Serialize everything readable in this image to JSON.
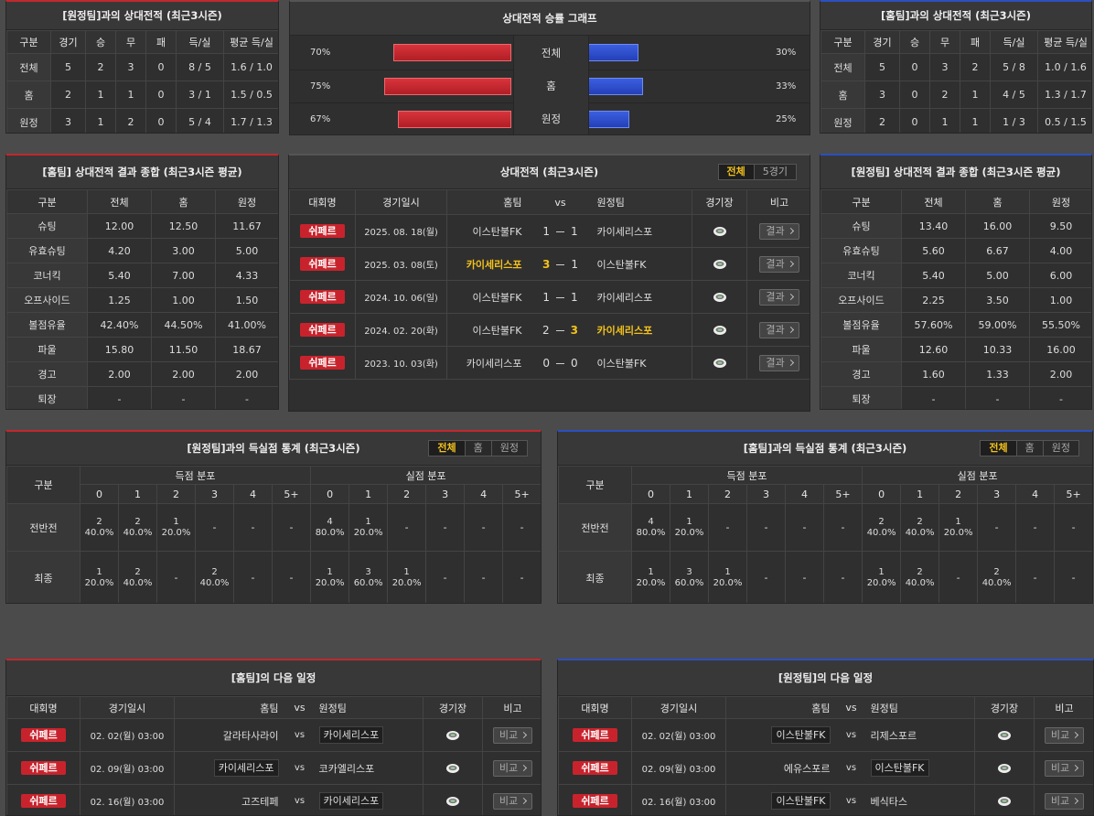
{
  "away_h2h": {
    "title": "[원정팀]과의 상대전적 (최근3시즌)",
    "columns": [
      "구분",
      "경기",
      "승",
      "무",
      "패",
      "득/실",
      "평균 득/실"
    ],
    "rows": [
      [
        "전체",
        "5",
        "2",
        "3",
        "0",
        "8 / 5",
        "1.6 / 1.0"
      ],
      [
        "홈",
        "2",
        "1",
        "1",
        "0",
        "3 / 1",
        "1.5 / 0.5"
      ],
      [
        "원정",
        "3",
        "1",
        "2",
        "0",
        "5 / 4",
        "1.7 / 1.3"
      ]
    ]
  },
  "winrate": {
    "title": "상대전적 승률 그래프",
    "rows": [
      {
        "label": "전체",
        "home": 70,
        "home_label": "70%",
        "away": 30,
        "away_label": "30%"
      },
      {
        "label": "홈",
        "home": 75,
        "home_label": "75%",
        "away": 33,
        "away_label": "33%"
      },
      {
        "label": "원정",
        "home": 67,
        "home_label": "67%",
        "away": 25,
        "away_label": "25%"
      }
    ]
  },
  "home_h2h": {
    "title": "[홈팀]과의 상대전적 (최근3시즌)",
    "columns": [
      "구분",
      "경기",
      "승",
      "무",
      "패",
      "득/실",
      "평균 득/실"
    ],
    "rows": [
      [
        "전체",
        "5",
        "0",
        "3",
        "2",
        "5 / 8",
        "1.0 / 1.6"
      ],
      [
        "홈",
        "3",
        "0",
        "2",
        "1",
        "4 / 5",
        "1.3 / 1.7"
      ],
      [
        "원정",
        "2",
        "0",
        "1",
        "1",
        "1 / 3",
        "0.5 / 1.5"
      ]
    ]
  },
  "home_summary": {
    "title": "[홈팀] 상대전적 결과 종합 (최근3시즌 평균)",
    "columns": [
      "구분",
      "전체",
      "홈",
      "원정"
    ],
    "rows": [
      [
        "슈팅",
        "12.00",
        "12.50",
        "11.67"
      ],
      [
        "유효슈팅",
        "4.20",
        "3.00",
        "5.00"
      ],
      [
        "코너킥",
        "5.40",
        "7.00",
        "4.33"
      ],
      [
        "오프사이드",
        "1.25",
        "1.00",
        "1.50"
      ],
      [
        "볼점유율",
        "42.40%",
        "44.50%",
        "41.00%"
      ],
      [
        "파울",
        "15.80",
        "11.50",
        "18.67"
      ],
      [
        "경고",
        "2.00",
        "2.00",
        "2.00"
      ],
      [
        "퇴장",
        "-",
        "-",
        "-"
      ]
    ]
  },
  "h2h_matches": {
    "title": "상대전적 (최근3시즌)",
    "tabs": [
      "전체",
      "5경기"
    ],
    "columns": [
      "대회명",
      "경기일시",
      "홈팀",
      "vs",
      "원정팀",
      "경기장",
      "비고"
    ],
    "rows": [
      {
        "league": "쉬페르",
        "date": "2025. 08. 18(월)",
        "home": "이스탄불FK",
        "score_home": 1,
        "score_away": 1,
        "away": "카이세리스포",
        "button": "결과"
      },
      {
        "league": "쉬페르",
        "date": "2025. 03. 08(토)",
        "home": "카이세리스포",
        "score_home": 3,
        "score_away": 1,
        "away": "이스탄불FK",
        "button": "결과"
      },
      {
        "league": "쉬페르",
        "date": "2024. 10. 06(일)",
        "home": "이스탄불FK",
        "score_home": 1,
        "score_away": 1,
        "away": "카이세리스포",
        "button": "결과"
      },
      {
        "league": "쉬페르",
        "date": "2024. 02. 20(화)",
        "home": "이스탄불FK",
        "score_home": 2,
        "score_away": 3,
        "away": "카이세리스포",
        "button": "결과"
      },
      {
        "league": "쉬페르",
        "date": "2023. 10. 03(화)",
        "home": "카이세리스포",
        "score_home": 0,
        "score_away": 0,
        "away": "이스탄불FK",
        "button": "결과"
      }
    ]
  },
  "away_summary": {
    "title": "[원정팀] 상대전적 결과 종합 (최근3시즌 평균)",
    "columns": [
      "구분",
      "전체",
      "홈",
      "원정"
    ],
    "rows": [
      [
        "슈팅",
        "13.40",
        "16.00",
        "9.50"
      ],
      [
        "유효슈팅",
        "5.60",
        "6.67",
        "4.00"
      ],
      [
        "코너킥",
        "5.40",
        "5.00",
        "6.00"
      ],
      [
        "오프사이드",
        "2.25",
        "3.50",
        "1.00"
      ],
      [
        "볼점유율",
        "57.60%",
        "59.00%",
        "55.50%"
      ],
      [
        "파울",
        "12.60",
        "10.33",
        "16.00"
      ],
      [
        "경고",
        "1.60",
        "1.33",
        "2.00"
      ],
      [
        "퇴장",
        "-",
        "-",
        "-"
      ]
    ]
  },
  "goals_away": {
    "title": "[원정팀]과의 득실점 통계 (최근3시즌)",
    "tabs": [
      "전체",
      "홈",
      "원정"
    ],
    "label": "구분",
    "groups": [
      "득점 분포",
      "실점 분포"
    ],
    "score_columns": [
      "0",
      "1",
      "2",
      "3",
      "4",
      "5+"
    ],
    "rows": [
      {
        "label": "전반전",
        "cells": [
          [
            "2",
            "40.0%"
          ],
          [
            "2",
            "40.0%"
          ],
          [
            "1",
            "20.0%"
          ],
          "-",
          "-",
          "-",
          [
            "4",
            "80.0%"
          ],
          [
            "1",
            "20.0%"
          ],
          "-",
          "-",
          "-",
          "-"
        ]
      },
      {
        "label": "최종",
        "cells": [
          [
            "1",
            "20.0%"
          ],
          [
            "2",
            "40.0%"
          ],
          "-",
          [
            "2",
            "40.0%"
          ],
          "-",
          "-",
          [
            "1",
            "20.0%"
          ],
          [
            "3",
            "60.0%"
          ],
          [
            "1",
            "20.0%"
          ],
          "-",
          "-",
          "-"
        ]
      }
    ]
  },
  "goals_home": {
    "title": "[홈팀]과의 득실점 통계 (최근3시즌)",
    "tabs": [
      "전체",
      "홈",
      "원정"
    ],
    "label": "구분",
    "groups": [
      "득점 분포",
      "실점 분포"
    ],
    "score_columns": [
      "0",
      "1",
      "2",
      "3",
      "4",
      "5+"
    ],
    "rows": [
      {
        "label": "전반전",
        "cells": [
          [
            "4",
            "80.0%"
          ],
          [
            "1",
            "20.0%"
          ],
          "-",
          "-",
          "-",
          "-",
          [
            "2",
            "40.0%"
          ],
          [
            "2",
            "40.0%"
          ],
          [
            "1",
            "20.0%"
          ],
          "-",
          "-",
          "-"
        ]
      },
      {
        "label": "최종",
        "cells": [
          [
            "1",
            "20.0%"
          ],
          [
            "3",
            "60.0%"
          ],
          [
            "1",
            "20.0%"
          ],
          "-",
          "-",
          "-",
          [
            "1",
            "20.0%"
          ],
          [
            "2",
            "40.0%"
          ],
          "-",
          [
            "2",
            "40.0%"
          ],
          "-",
          "-"
        ]
      }
    ]
  },
  "schedule_home": {
    "title": "[홈팀]의 다음 일정",
    "columns": [
      "대회명",
      "경기일시",
      "홈팀",
      "vs",
      "원정팀",
      "경기장",
      "비고"
    ],
    "rows": [
      {
        "league": "쉬페르",
        "date": "02. 02(월) 03:00",
        "home": "갈라타사라이",
        "away": "카이세리스포",
        "button": "비교"
      },
      {
        "league": "쉬페르",
        "date": "02. 09(월) 03:00",
        "home": "카이세리스포",
        "away": "코카엘리스포",
        "button": "비교"
      },
      {
        "league": "쉬페르",
        "date": "02. 16(월) 03:00",
        "home": "고즈테페",
        "away": "카이세리스포",
        "button": "비교"
      }
    ]
  },
  "schedule_away": {
    "title": "[원정팀]의 다음 일정",
    "columns": [
      "대회명",
      "경기일시",
      "홈팀",
      "vs",
      "원정팀",
      "경기장",
      "비고"
    ],
    "rows": [
      {
        "league": "쉬페르",
        "date": "02. 02(월) 03:00",
        "home": "이스탄불FK",
        "away": "리제스포르",
        "button": "비교"
      },
      {
        "league": "쉬페르",
        "date": "02. 09(월) 03:00",
        "home": "에유스포르",
        "away": "이스탄불FK",
        "button": "비교"
      },
      {
        "league": "쉬페르",
        "date": "02. 16(월) 03:00",
        "home": "이스탄불FK",
        "away": "베식타스",
        "button": "비교"
      }
    ]
  }
}
